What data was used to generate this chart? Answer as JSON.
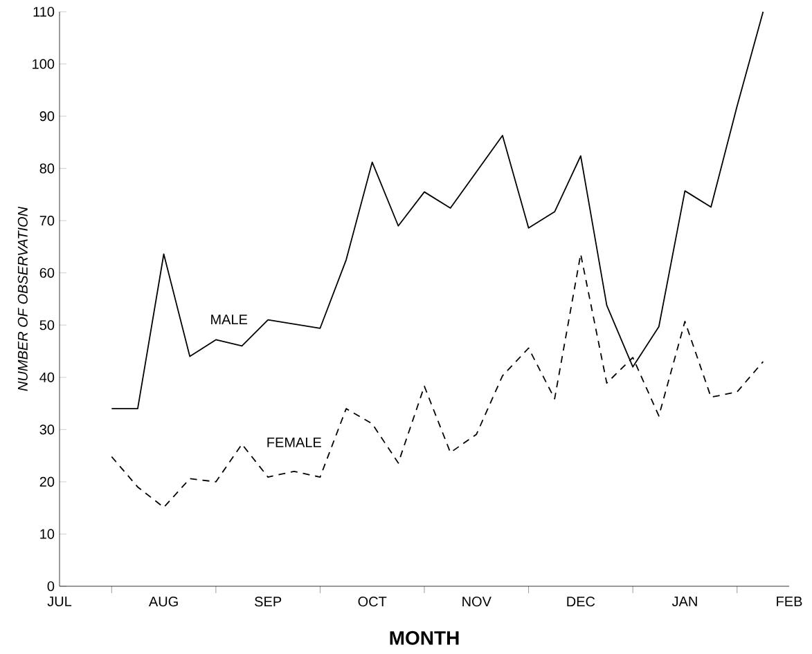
{
  "chart_data": {
    "type": "line",
    "xlabel": "MONTH",
    "ylabel": "NUMBER  OF  OBSERVATION",
    "categories": [
      "JUL",
      null,
      null,
      null,
      "AUG",
      null,
      null,
      null,
      "SEP",
      null,
      null,
      null,
      "OCT",
      null,
      null,
      null,
      "NOV",
      null,
      null,
      null,
      "DEC",
      null,
      null,
      null,
      "JAN",
      null,
      null,
      null,
      "FEB"
    ],
    "ylim": [
      0,
      110
    ],
    "yticks": [
      0,
      10,
      20,
      30,
      40,
      50,
      60,
      70,
      80,
      90,
      100,
      110
    ],
    "series": [
      {
        "name": "MALE",
        "color": "#000000",
        "line_style": "solid",
        "values": [
          null,
          null,
          34,
          34,
          63.6,
          44,
          47.2,
          46,
          51,
          null,
          49.4,
          62.5,
          81.2,
          69,
          75.5,
          72.4,
          null,
          86.3,
          68.6,
          71.7,
          82.4,
          53.8,
          42,
          49.7,
          75.7,
          72.6,
          91.9,
          110,
          null
        ]
      },
      {
        "name": "FEMALE",
        "color": "#000000",
        "line_style": "dashed",
        "values": [
          null,
          null,
          24.8,
          19,
          15.1,
          20.6,
          20,
          27.2,
          20.9,
          22,
          20.9,
          34,
          31.1,
          23.6,
          38.3,
          25.6,
          29.1,
          40.3,
          45.6,
          35.9,
          63.6,
          38.9,
          43.8,
          32.6,
          50.7,
          36.2,
          37.2,
          43,
          null
        ]
      }
    ]
  }
}
